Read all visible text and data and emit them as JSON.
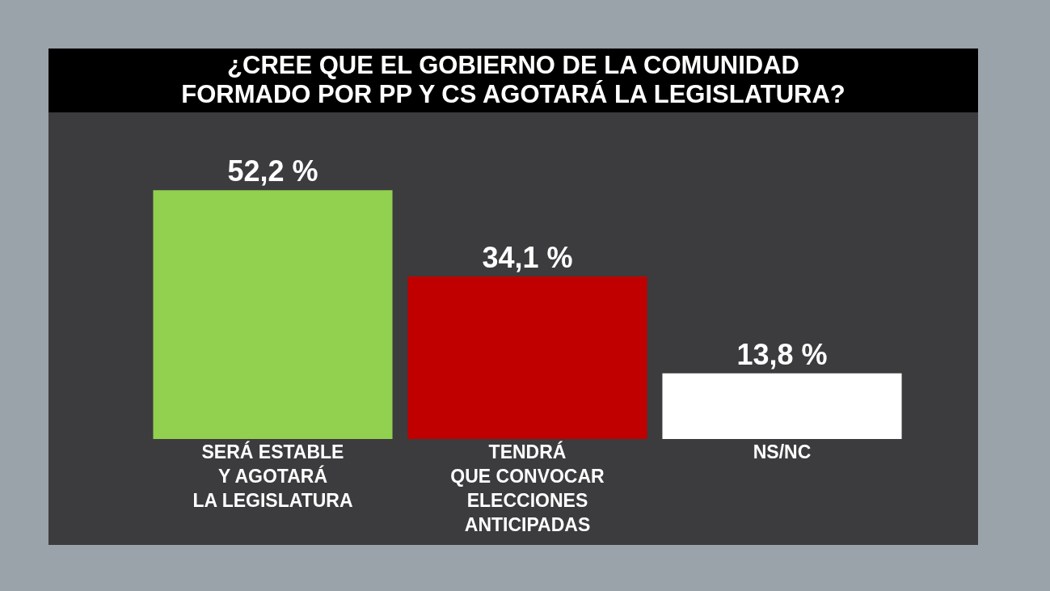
{
  "chart_data": {
    "type": "bar",
    "title": "¿CREE QUE EL GOBIERNO DE LA COMUNIDAD\nFORMADO POR PP Y CS AGOTARÁ LA LEGISLATURA?",
    "categories": [
      "SERÁ ESTABLE\nY AGOTARÁ\nLA LEGISLATURA",
      "TENDRÁ\nQUE CONVOCAR\nELECCIONES\nANTICIPADAS",
      "NS/NC"
    ],
    "values": [
      52.2,
      34.1,
      13.8
    ],
    "colors": [
      "#92d050",
      "#c00000",
      "#ffffff"
    ],
    "value_labels": [
      "52,2 %",
      "34,1 %",
      "13,8 %"
    ],
    "legend": false
  }
}
